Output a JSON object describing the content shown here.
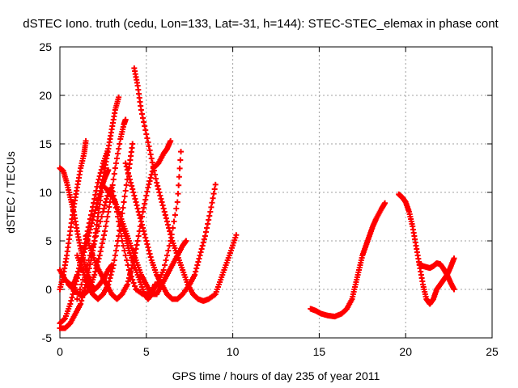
{
  "chart_data": {
    "type": "scatter",
    "title": "dSTEC Iono. truth (cedu, Lon=133, Lat=-31, h=144): STEC-STEC_elemax in phase cont",
    "xlabel": "GPS time / hours of day 235 of year 2011",
    "ylabel": "dSTEC  / TECUs",
    "xlim": [
      0,
      25
    ],
    "ylim": [
      -5,
      25
    ],
    "xticks": [
      0,
      5,
      10,
      15,
      20,
      25
    ],
    "yticks": [
      -5,
      0,
      5,
      10,
      15,
      20,
      25
    ],
    "grid": true,
    "marker": "+",
    "color": "#ff0000",
    "series": [
      {
        "points": [
          [
            0.0,
            12.5
          ],
          [
            0.2,
            12.2
          ],
          [
            0.4,
            11.0
          ],
          [
            0.6,
            9.5
          ],
          [
            0.8,
            8.0
          ],
          [
            1.0,
            6.0
          ],
          [
            1.2,
            4.2
          ],
          [
            1.4,
            2.8
          ],
          [
            1.6,
            1.5
          ],
          [
            1.8,
            0.5
          ],
          [
            2.0,
            0.0
          ],
          [
            2.2,
            0.3
          ],
          [
            2.5,
            1.0
          ],
          [
            2.8,
            2.0
          ],
          [
            3.0,
            2.5
          ]
        ]
      },
      {
        "points": [
          [
            0.0,
            0.0
          ],
          [
            0.2,
            1.5
          ],
          [
            0.4,
            3.5
          ],
          [
            0.6,
            6.0
          ],
          [
            0.8,
            8.5
          ],
          [
            1.0,
            10.5
          ],
          [
            1.2,
            12.5
          ],
          [
            1.4,
            14.0
          ],
          [
            1.5,
            15.3
          ]
        ]
      },
      {
        "points": [
          [
            0.0,
            -3.5
          ],
          [
            0.3,
            -3.0
          ],
          [
            0.6,
            -1.5
          ],
          [
            0.9,
            0.5
          ],
          [
            1.2,
            2.5
          ],
          [
            1.5,
            4.5
          ],
          [
            1.8,
            6.5
          ],
          [
            2.1,
            8.5
          ],
          [
            2.4,
            10.5
          ],
          [
            2.6,
            11.5
          ],
          [
            2.8,
            12.3
          ]
        ]
      },
      {
        "points": [
          [
            0.0,
            -4.0
          ],
          [
            0.3,
            -4.0
          ],
          [
            0.6,
            -3.5
          ],
          [
            0.9,
            -2.5
          ],
          [
            1.2,
            -1.5
          ],
          [
            1.5,
            0.5
          ],
          [
            1.8,
            3.0
          ],
          [
            2.0,
            5.0
          ],
          [
            2.2,
            7.5
          ],
          [
            2.4,
            10.0
          ],
          [
            2.6,
            12.5
          ],
          [
            2.8,
            14.5
          ],
          [
            3.0,
            16.5
          ],
          [
            3.2,
            18.5
          ],
          [
            3.4,
            19.8
          ]
        ]
      },
      {
        "points": [
          [
            0.0,
            2.0
          ],
          [
            0.3,
            1.0
          ],
          [
            0.6,
            0.5
          ],
          [
            0.8,
            0.5
          ],
          [
            1.0,
            1.5
          ],
          [
            1.3,
            3.5
          ],
          [
            1.6,
            6.0
          ],
          [
            1.9,
            8.5
          ],
          [
            2.2,
            11.0
          ],
          [
            2.5,
            13.0
          ],
          [
            2.8,
            14.5
          ]
        ]
      },
      {
        "points": [
          [
            0.5,
            0.5
          ],
          [
            0.8,
            0.0
          ],
          [
            1.1,
            -0.5
          ],
          [
            1.4,
            -0.5
          ],
          [
            1.7,
            0.0
          ],
          [
            2.0,
            1.5
          ],
          [
            2.3,
            3.5
          ],
          [
            2.6,
            6.0
          ],
          [
            2.9,
            9.0
          ],
          [
            3.2,
            12.5
          ],
          [
            3.5,
            15.5
          ],
          [
            3.7,
            17.0
          ],
          [
            3.8,
            17.5
          ]
        ]
      },
      {
        "points": [
          [
            1.0,
            3.5
          ],
          [
            1.3,
            2.0
          ],
          [
            1.6,
            0.5
          ],
          [
            1.9,
            -0.5
          ],
          [
            2.2,
            -1.0
          ],
          [
            2.5,
            -0.5
          ],
          [
            2.8,
            0.5
          ],
          [
            3.1,
            2.5
          ],
          [
            3.4,
            5.5
          ],
          [
            3.7,
            9.0
          ],
          [
            4.0,
            12.5
          ],
          [
            4.2,
            15.0
          ]
        ]
      },
      {
        "points": [
          [
            1.5,
            5.5
          ],
          [
            1.8,
            4.0
          ],
          [
            2.1,
            2.5
          ],
          [
            2.4,
            1.5
          ],
          [
            2.7,
            0.5
          ],
          [
            3.0,
            -0.5
          ],
          [
            3.3,
            -1.0
          ],
          [
            3.6,
            -0.5
          ],
          [
            3.9,
            0.5
          ],
          [
            4.2,
            2.5
          ],
          [
            4.5,
            5.0
          ],
          [
            4.8,
            8.0
          ],
          [
            5.1,
            10.5
          ],
          [
            5.4,
            12.5
          ],
          [
            5.7,
            13.0
          ],
          [
            6.0,
            14.0
          ],
          [
            6.2,
            14.5
          ],
          [
            6.4,
            15.3
          ]
        ]
      },
      {
        "points": [
          [
            1.0,
            -1.0
          ],
          [
            1.5,
            2.0
          ],
          [
            2.0,
            5.0
          ],
          [
            2.5,
            8.0
          ],
          [
            2.8,
            10.0
          ],
          [
            3.0,
            10.5
          ],
          [
            3.3,
            8.0
          ],
          [
            3.6,
            5.0
          ],
          [
            4.0,
            2.0
          ],
          [
            4.4,
            0.0
          ],
          [
            4.8,
            -0.5
          ],
          [
            5.2,
            -0.5
          ],
          [
            5.6,
            0.5
          ],
          [
            6.0,
            2.0
          ],
          [
            6.4,
            5.0
          ],
          [
            6.8,
            9.0
          ],
          [
            7.0,
            14.2
          ]
        ]
      },
      {
        "points": [
          [
            2.6,
            10.5
          ],
          [
            2.9,
            10.0
          ],
          [
            3.2,
            9.0
          ],
          [
            3.5,
            7.5
          ],
          [
            3.8,
            6.0
          ],
          [
            4.1,
            4.5
          ],
          [
            4.4,
            3.0
          ],
          [
            4.7,
            1.5
          ],
          [
            5.0,
            0.5
          ],
          [
            5.3,
            -0.5
          ],
          [
            5.6,
            -0.5
          ],
          [
            5.9,
            0.5
          ],
          [
            6.2,
            1.5
          ],
          [
            6.5,
            2.5
          ],
          [
            6.8,
            3.5
          ],
          [
            7.1,
            4.5
          ],
          [
            7.3,
            5.0
          ]
        ]
      },
      {
        "points": [
          [
            3.8,
            13.0
          ],
          [
            4.1,
            11.0
          ],
          [
            4.4,
            9.0
          ],
          [
            4.7,
            7.0
          ],
          [
            5.0,
            5.0
          ],
          [
            5.3,
            3.0
          ],
          [
            5.6,
            1.5
          ],
          [
            5.9,
            0.5
          ],
          [
            6.2,
            -0.5
          ],
          [
            6.5,
            -1.0
          ],
          [
            6.8,
            -1.0
          ],
          [
            7.1,
            -0.5
          ],
          [
            7.5,
            0.5
          ],
          [
            7.8,
            1.5
          ],
          [
            8.1,
            3.5
          ],
          [
            8.4,
            5.5
          ],
          [
            8.7,
            8.0
          ],
          [
            9.0,
            10.8
          ]
        ]
      },
      {
        "points": [
          [
            4.3,
            22.8
          ],
          [
            4.5,
            21.0
          ],
          [
            4.7,
            18.5
          ],
          [
            5.0,
            16.0
          ],
          [
            5.3,
            13.5
          ],
          [
            5.6,
            11.0
          ],
          [
            5.9,
            9.0
          ],
          [
            6.2,
            7.0
          ],
          [
            6.5,
            5.0
          ],
          [
            6.8,
            3.5
          ],
          [
            7.1,
            2.0
          ],
          [
            7.4,
            0.5
          ],
          [
            7.7,
            -0.5
          ],
          [
            8.0,
            -1.0
          ],
          [
            8.3,
            -1.2
          ],
          [
            8.6,
            -1.0
          ],
          [
            9.0,
            -0.5
          ],
          [
            9.3,
            1.0
          ],
          [
            9.6,
            2.5
          ],
          [
            9.9,
            4.0
          ],
          [
            10.2,
            5.6
          ]
        ]
      },
      {
        "points": [
          [
            3.5,
            7.0
          ],
          [
            3.8,
            5.5
          ],
          [
            4.0,
            4.0
          ],
          [
            4.3,
            2.5
          ],
          [
            4.6,
            1.0
          ],
          [
            4.9,
            -0.5
          ],
          [
            5.1,
            -1.0
          ],
          [
            5.3,
            -0.5
          ],
          [
            5.5,
            0.5
          ]
        ]
      },
      {
        "points": [
          [
            14.5,
            -2.0
          ],
          [
            14.8,
            -2.2
          ],
          [
            15.1,
            -2.5
          ],
          [
            15.5,
            -2.7
          ],
          [
            15.9,
            -2.8
          ],
          [
            16.3,
            -2.5
          ],
          [
            16.6,
            -2.0
          ],
          [
            16.9,
            -1.0
          ],
          [
            17.1,
            0.5
          ],
          [
            17.3,
            2.0
          ],
          [
            17.5,
            3.5
          ],
          [
            17.7,
            4.5
          ],
          [
            17.9,
            5.5
          ],
          [
            18.1,
            6.5
          ],
          [
            18.3,
            7.3
          ],
          [
            18.6,
            8.3
          ],
          [
            18.8,
            8.9
          ]
        ]
      },
      {
        "points": [
          [
            19.6,
            9.8
          ],
          [
            19.8,
            9.5
          ],
          [
            20.0,
            9.0
          ],
          [
            20.2,
            8.0
          ],
          [
            20.4,
            6.5
          ],
          [
            20.6,
            4.5
          ],
          [
            20.8,
            2.5
          ],
          [
            21.0,
            0.5
          ],
          [
            21.2,
            -1.0
          ],
          [
            21.4,
            -1.5
          ],
          [
            21.6,
            -1.0
          ],
          [
            21.8,
            0.0
          ],
          [
            22.0,
            0.5
          ],
          [
            22.2,
            1.0
          ],
          [
            22.4,
            1.5
          ],
          [
            22.6,
            2.3
          ],
          [
            22.8,
            3.2
          ]
        ]
      },
      {
        "points": [
          [
            20.8,
            2.6
          ],
          [
            21.0,
            2.4
          ],
          [
            21.2,
            2.3
          ],
          [
            21.4,
            2.2
          ],
          [
            21.6,
            2.4
          ],
          [
            21.8,
            2.7
          ],
          [
            22.0,
            2.6
          ],
          [
            22.2,
            2.1
          ],
          [
            22.4,
            1.5
          ],
          [
            22.6,
            0.7
          ],
          [
            22.8,
            0.0
          ]
        ]
      }
    ]
  }
}
